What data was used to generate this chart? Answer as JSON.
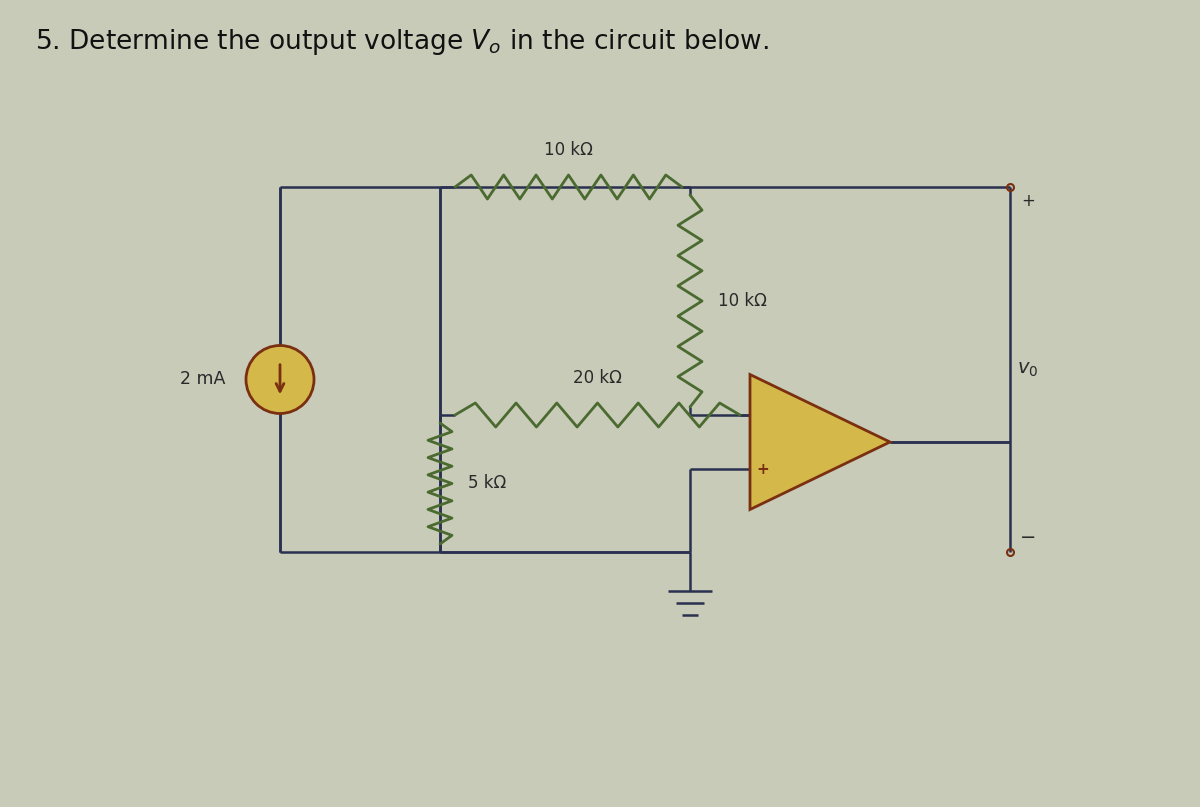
{
  "title_part1": "5. Determine the output voltage V",
  "title_sub": "o",
  "title_part2": " in the circuit below.",
  "bg_color": "#c8cbb8",
  "line_color": "#2a3050",
  "component_fill": "#d4b84a",
  "component_edge": "#7a3010",
  "resistor_color": "#4a6a30",
  "text_color": "#2a2a2a",
  "label_10k_top": "10 kΩ",
  "label_20k": "20 kΩ",
  "label_5k": "5 kΩ",
  "label_10k_v": "10 kΩ",
  "label_current": "2 mA",
  "label_vo": "v",
  "label_vo_sub": "0",
  "label_plus": "+",
  "label_minus": "−"
}
